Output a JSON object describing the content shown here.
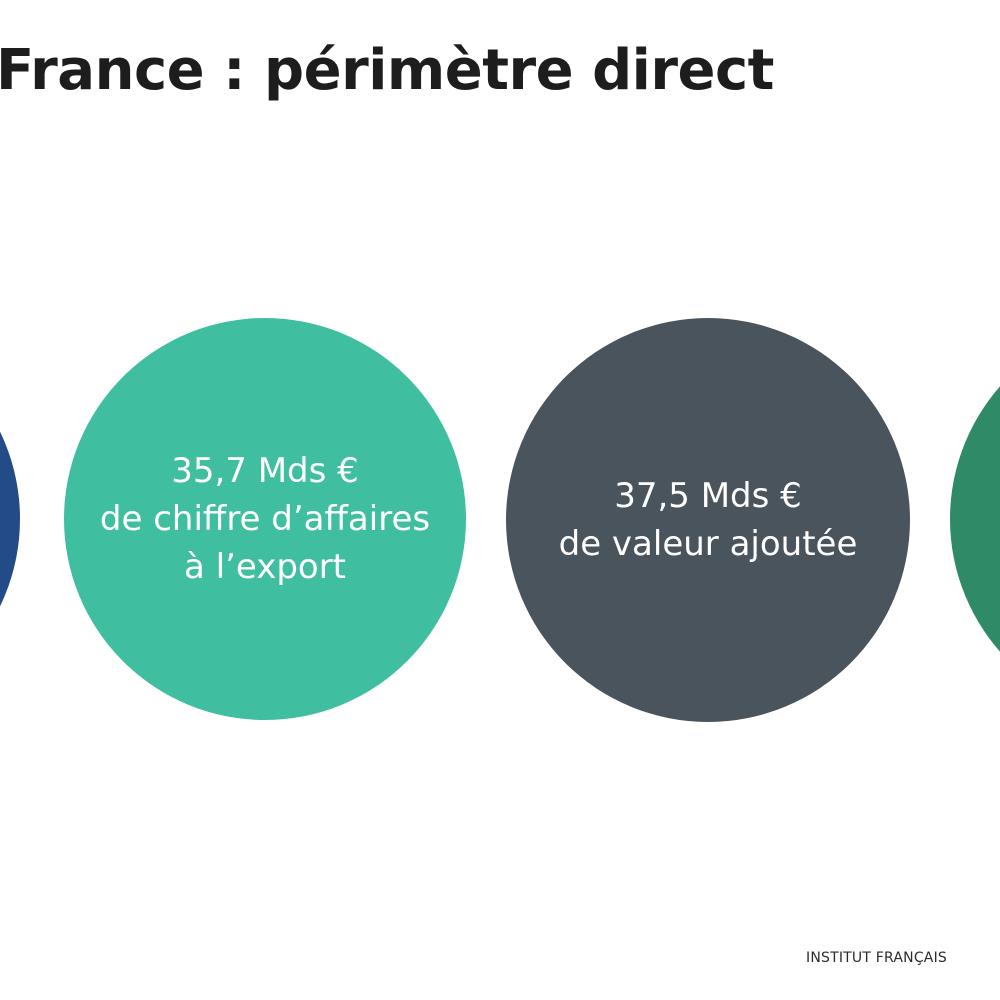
{
  "slide": {
    "title": "France : périmètre direct",
    "footer": "INSTITUT FRANÇAIS"
  },
  "circles": [
    {
      "id": "left",
      "color": "#234b87",
      "value": "",
      "lines": []
    },
    {
      "id": "export",
      "color": "#40bfa0",
      "value": "35,7 Mds €",
      "lines": [
        "de chiffre d’affaires",
        "à l’export"
      ]
    },
    {
      "id": "value-added",
      "color": "#4a545d",
      "value": "37,5 Mds €",
      "lines": [
        "de valeur ajoutée"
      ]
    },
    {
      "id": "right",
      "color": "#2f8a68",
      "value": "",
      "lines": []
    }
  ]
}
